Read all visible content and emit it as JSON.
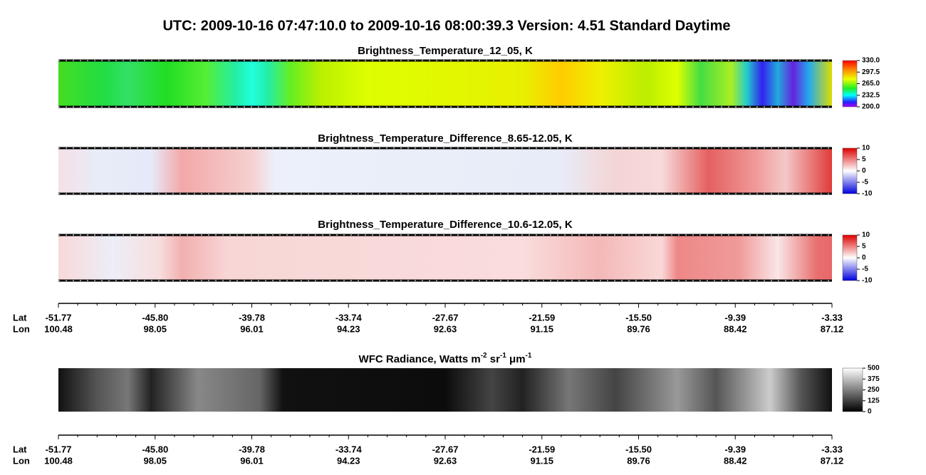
{
  "title": "UTC:  2009-10-16   07:47:10.0  to  2009-10-16   08:00:39.3    Version: 4.51  Standard Daytime",
  "panels": [
    {
      "title": [
        "Brightness_Temperature_12_05, K"
      ],
      "clim": [
        200,
        330
      ],
      "cbar_ticks": [
        {
          "value": 330,
          "label": "330.0"
        },
        {
          "value": 297.5,
          "label": "297.5"
        },
        {
          "value": 265,
          "label": "265.0"
        },
        {
          "value": 232.5,
          "label": "232.5"
        },
        {
          "value": 200,
          "label": "200.0"
        }
      ]
    },
    {
      "title": [
        "Brightness_Temperature_Difference_8.65-12.05, K"
      ],
      "clim": [
        -10,
        10
      ],
      "cbar_ticks": [
        10,
        5,
        0,
        -5,
        -10
      ]
    },
    {
      "title": [
        "Brightness_Temperature_Difference_10.6-12.05, K"
      ],
      "clim": [
        -10,
        10
      ],
      "cbar_ticks": [
        10,
        5,
        0,
        -5,
        -10
      ]
    },
    {
      "title": [
        "WFC Radiance, Watts m",
        "-2",
        " sr",
        "-1",
        " μm",
        "-1"
      ],
      "clim": [
        0,
        500
      ],
      "cbar_ticks": [
        500,
        375,
        250,
        125,
        0
      ]
    }
  ],
  "axes": [
    {
      "lat_label": "Lat",
      "lon_label": "Lon",
      "lat": [
        "-51.77",
        "-45.80",
        "-39.78",
        "-33.74",
        "-27.67",
        "-21.59",
        "-15.50",
        "-9.39",
        "-3.33"
      ],
      "lon": [
        "100.48",
        "98.05",
        "96.01",
        "94.23",
        "92.63",
        "91.15",
        "89.76",
        "88.42",
        "87.12"
      ]
    },
    {
      "lat_label": "Lat",
      "lon_label": "Lon",
      "lat": [
        "-51.77",
        "-45.80",
        "-39.78",
        "-33.74",
        "-27.67",
        "-21.59",
        "-15.50",
        "-9.39",
        "-3.33"
      ],
      "lon": [
        "100.48",
        "98.05",
        "96.01",
        "94.23",
        "92.63",
        "91.15",
        "89.76",
        "88.42",
        "87.12"
      ]
    }
  ]
}
